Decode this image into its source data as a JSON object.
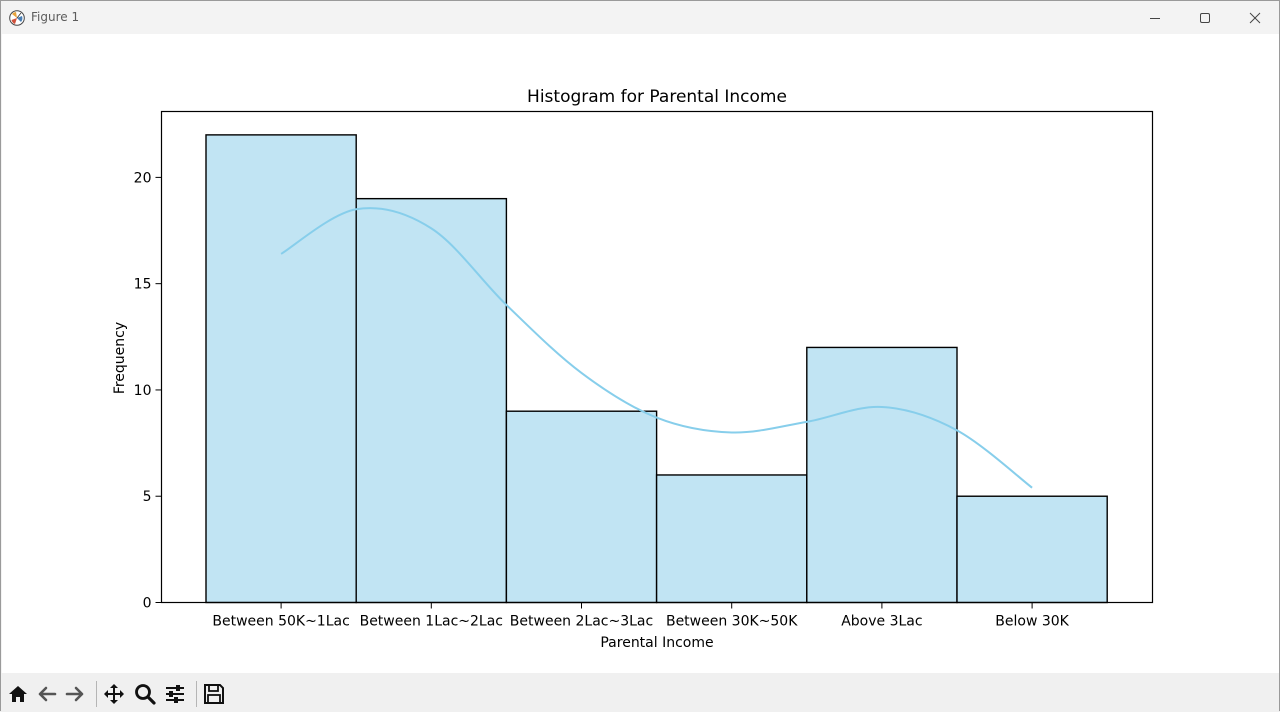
{
  "window": {
    "title": "Figure 1",
    "controls": [
      "minimize-icon",
      "maximize-icon",
      "close-icon"
    ]
  },
  "toolbar": {
    "buttons": [
      {
        "name": "home-button",
        "icon": "home-icon"
      },
      {
        "name": "back-button",
        "icon": "arrow-left-icon"
      },
      {
        "name": "forward-button",
        "icon": "arrow-right-icon"
      },
      {
        "name": "pan-button",
        "icon": "move-icon"
      },
      {
        "name": "zoom-button",
        "icon": "magnifier-icon"
      },
      {
        "name": "configure-subplots-button",
        "icon": "sliders-icon"
      },
      {
        "name": "save-button",
        "icon": "floppy-disk-icon"
      }
    ]
  },
  "colors": {
    "bar_fill": "#c1e4f3",
    "bar_edge": "#000000",
    "kde_line": "#87ceeb"
  },
  "chart_data": {
    "type": "bar",
    "title": "Histogram for Parental Income",
    "xlabel": "Parental Income",
    "ylabel": "Frequency",
    "categories": [
      "Between 50K~1Lac",
      "Between 1Lac~2Lac",
      "Between 2Lac~3Lac",
      "Between 30K~50K",
      "Above 3Lac",
      "Below 30K"
    ],
    "values": [
      22,
      19,
      9,
      6,
      12,
      5
    ],
    "ylim": [
      0,
      23.1
    ],
    "yticks": [
      0,
      5,
      10,
      15,
      20
    ],
    "kde": {
      "x": [
        0,
        0.5,
        1,
        1.5,
        2,
        2.5,
        3,
        3.5,
        4,
        4.5,
        5
      ],
      "y": [
        16.4,
        18.5,
        17.6,
        14.0,
        10.8,
        8.7,
        8.0,
        8.5,
        9.2,
        8.1,
        5.4
      ]
    }
  }
}
